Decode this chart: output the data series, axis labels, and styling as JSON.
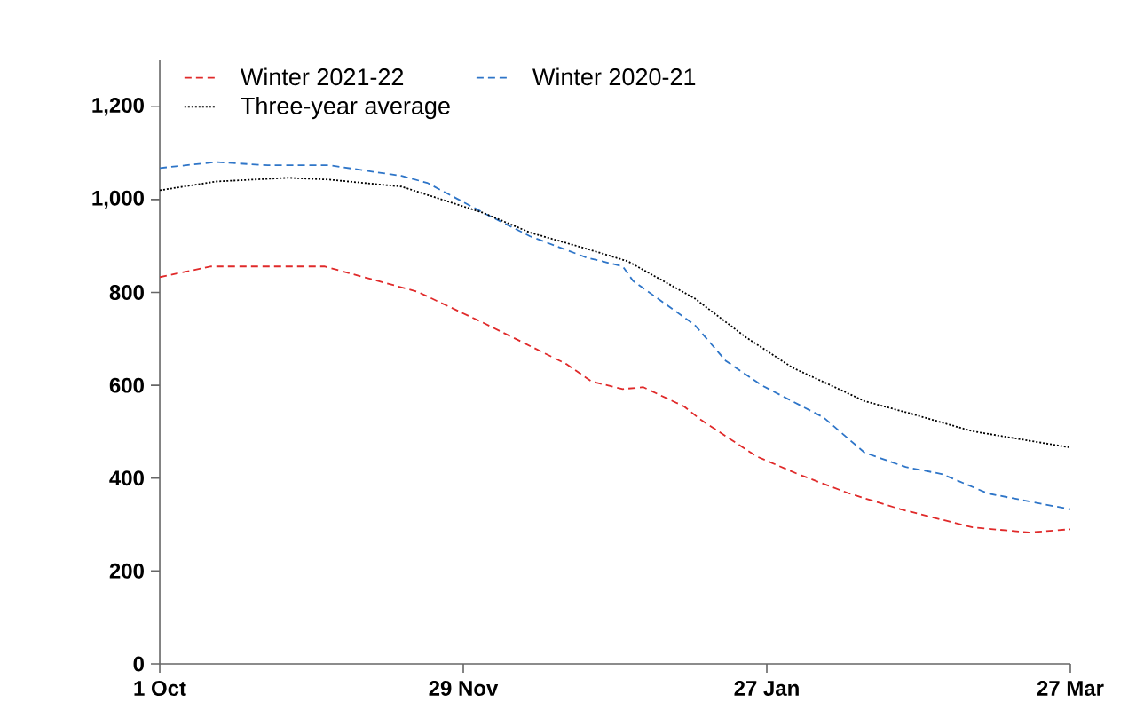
{
  "chart_data": {
    "type": "line",
    "xlim": [
      "2021-10-01",
      "2022-03-27"
    ],
    "xticks": [
      {
        "value": "2021-10-01",
        "label": "1 Oct"
      },
      {
        "value": "2021-11-29",
        "label": "29 Nov"
      },
      {
        "value": "2022-01-27",
        "label": "27 Jan"
      },
      {
        "value": "2022-03-27",
        "label": "27 Mar"
      }
    ],
    "ylim": [
      0,
      1300
    ],
    "yticks": [
      0,
      200,
      400,
      600,
      800,
      {
        "value": 1000,
        "label": "1,000"
      },
      {
        "value": 1200,
        "label": "1,200"
      }
    ],
    "grid": false,
    "legend": "top left",
    "marker": "none",
    "series": [
      {
        "name": "Winter 2021-22",
        "color": "#e02a2a",
        "line_style": "dashed",
        "x": [
          "2021-10-01",
          "2021-10-11",
          "2021-11-02",
          "2021-11-20",
          "2021-12-03",
          "2021-12-19",
          "2021-12-24",
          "2021-12-30",
          "2022-01-03",
          "2022-01-11",
          "2022-01-14",
          "2022-01-25",
          "2022-02-02",
          "2022-02-12",
          "2022-02-22",
          "2022-03-08",
          "2022-03-19",
          "2022-03-27"
        ],
        "values": [
          833,
          856,
          856,
          802,
          734,
          646,
          608,
          592,
          596,
          554,
          527,
          447,
          409,
          367,
          333,
          294,
          283,
          290
        ]
      },
      {
        "name": "Winter 2020-21",
        "color": "#2e75c8",
        "line_style": "dashed",
        "x": [
          "2021-10-01",
          "2021-10-12",
          "2021-10-22",
          "2021-11-03",
          "2021-11-17",
          "2021-11-22",
          "2021-12-03",
          "2021-12-12",
          "2021-12-23",
          "2021-12-26",
          "2021-12-30",
          "2022-01-01",
          "2022-01-13",
          "2022-01-19",
          "2022-01-26",
          "2022-02-07",
          "2022-02-15",
          "2022-02-23",
          "2022-03-02",
          "2022-03-11",
          "2022-03-18",
          "2022-03-27"
        ],
        "values": [
          1068,
          1081,
          1074,
          1074,
          1051,
          1036,
          971,
          921,
          875,
          867,
          856,
          825,
          730,
          653,
          600,
          531,
          455,
          424,
          409,
          367,
          352,
          333
        ]
      },
      {
        "name": "Three-year average",
        "color": "#000000",
        "line_style": "dotted",
        "x": [
          "2021-10-01",
          "2021-10-12",
          "2021-10-26",
          "2021-11-03",
          "2021-11-17",
          "2021-12-03",
          "2021-12-12",
          "2021-12-23",
          "2021-12-31",
          "2022-01-13",
          "2022-01-23",
          "2022-02-01",
          "2022-02-10",
          "2022-02-15",
          "2022-02-24",
          "2022-03-08",
          "2022-03-27"
        ],
        "values": [
          1020,
          1039,
          1047,
          1043,
          1028,
          971,
          929,
          894,
          867,
          787,
          703,
          638,
          592,
          566,
          539,
          501,
          466
        ]
      }
    ]
  }
}
